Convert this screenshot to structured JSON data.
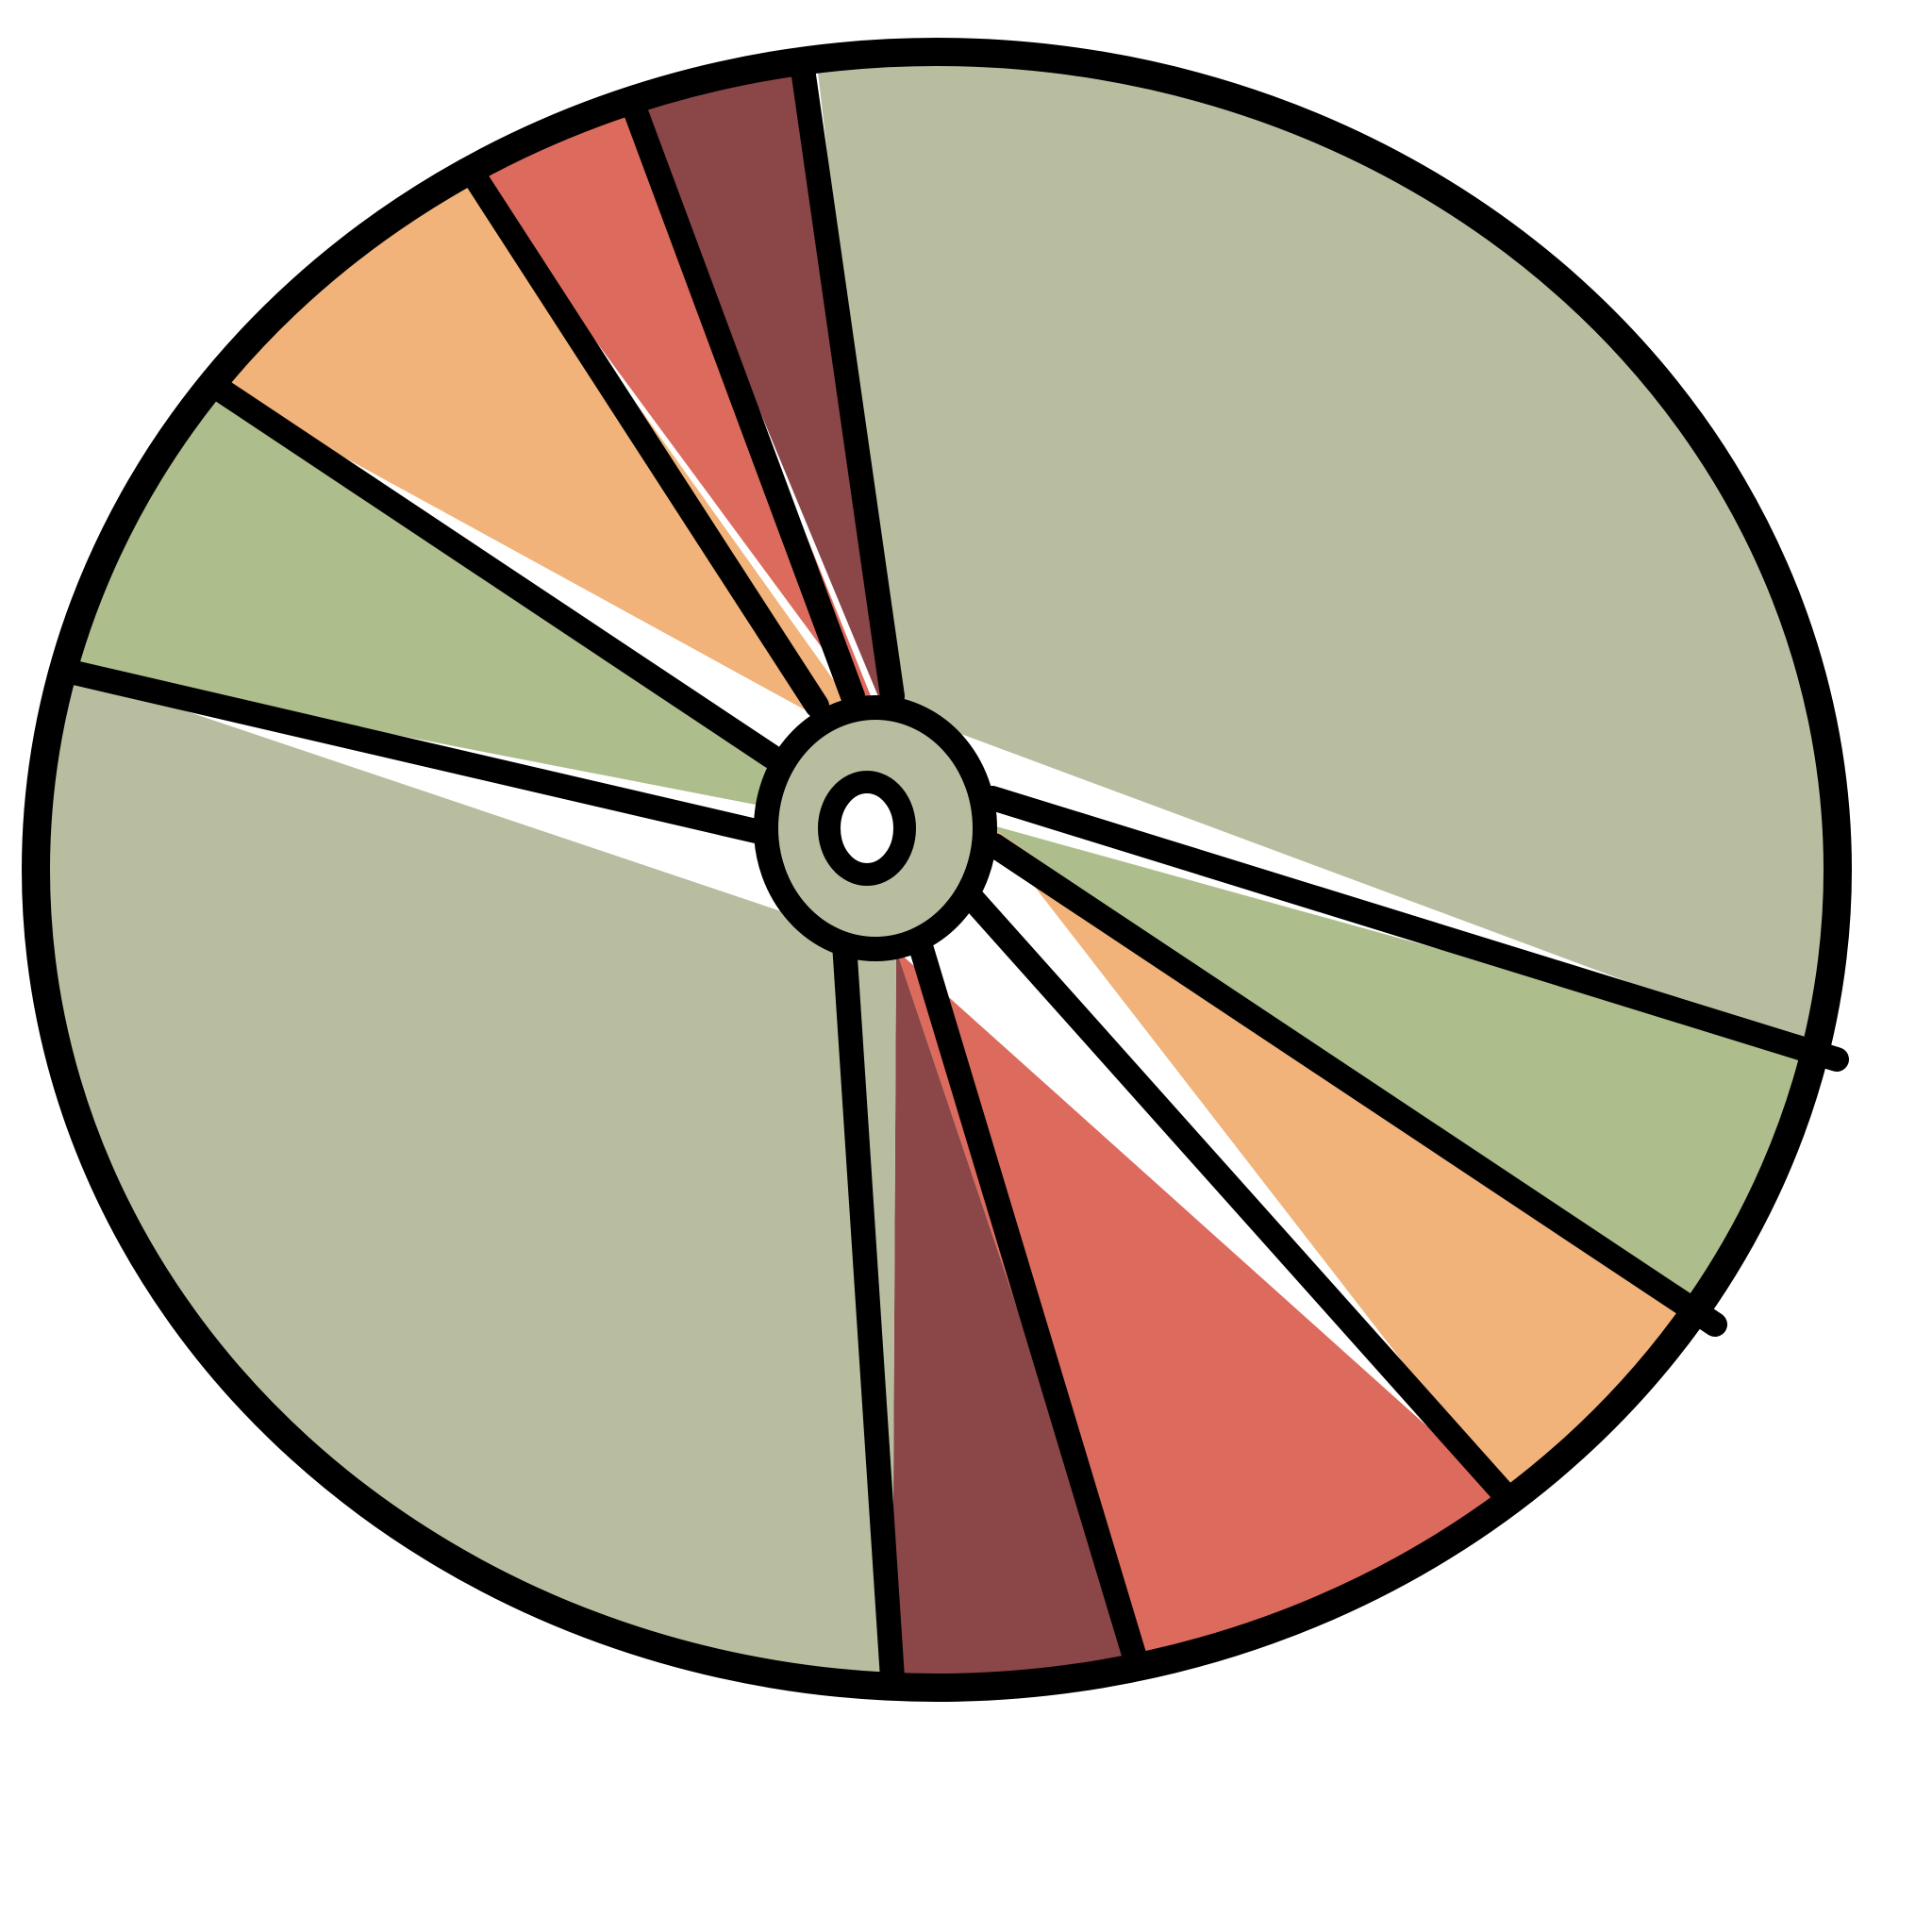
{
  "illustration": {
    "subject": "disc-icon",
    "colors": {
      "outline": "#000000",
      "sage": "#B9BDA0",
      "green": "#ADBD8C",
      "orange": "#F1B37A",
      "red": "#DC6B5E",
      "maroon": "#8B4648",
      "hole": "#FFFFFF"
    },
    "wedge_order": [
      "sage",
      "green",
      "orange",
      "red",
      "maroon",
      "sage",
      "green",
      "orange",
      "red",
      "maroon"
    ]
  }
}
